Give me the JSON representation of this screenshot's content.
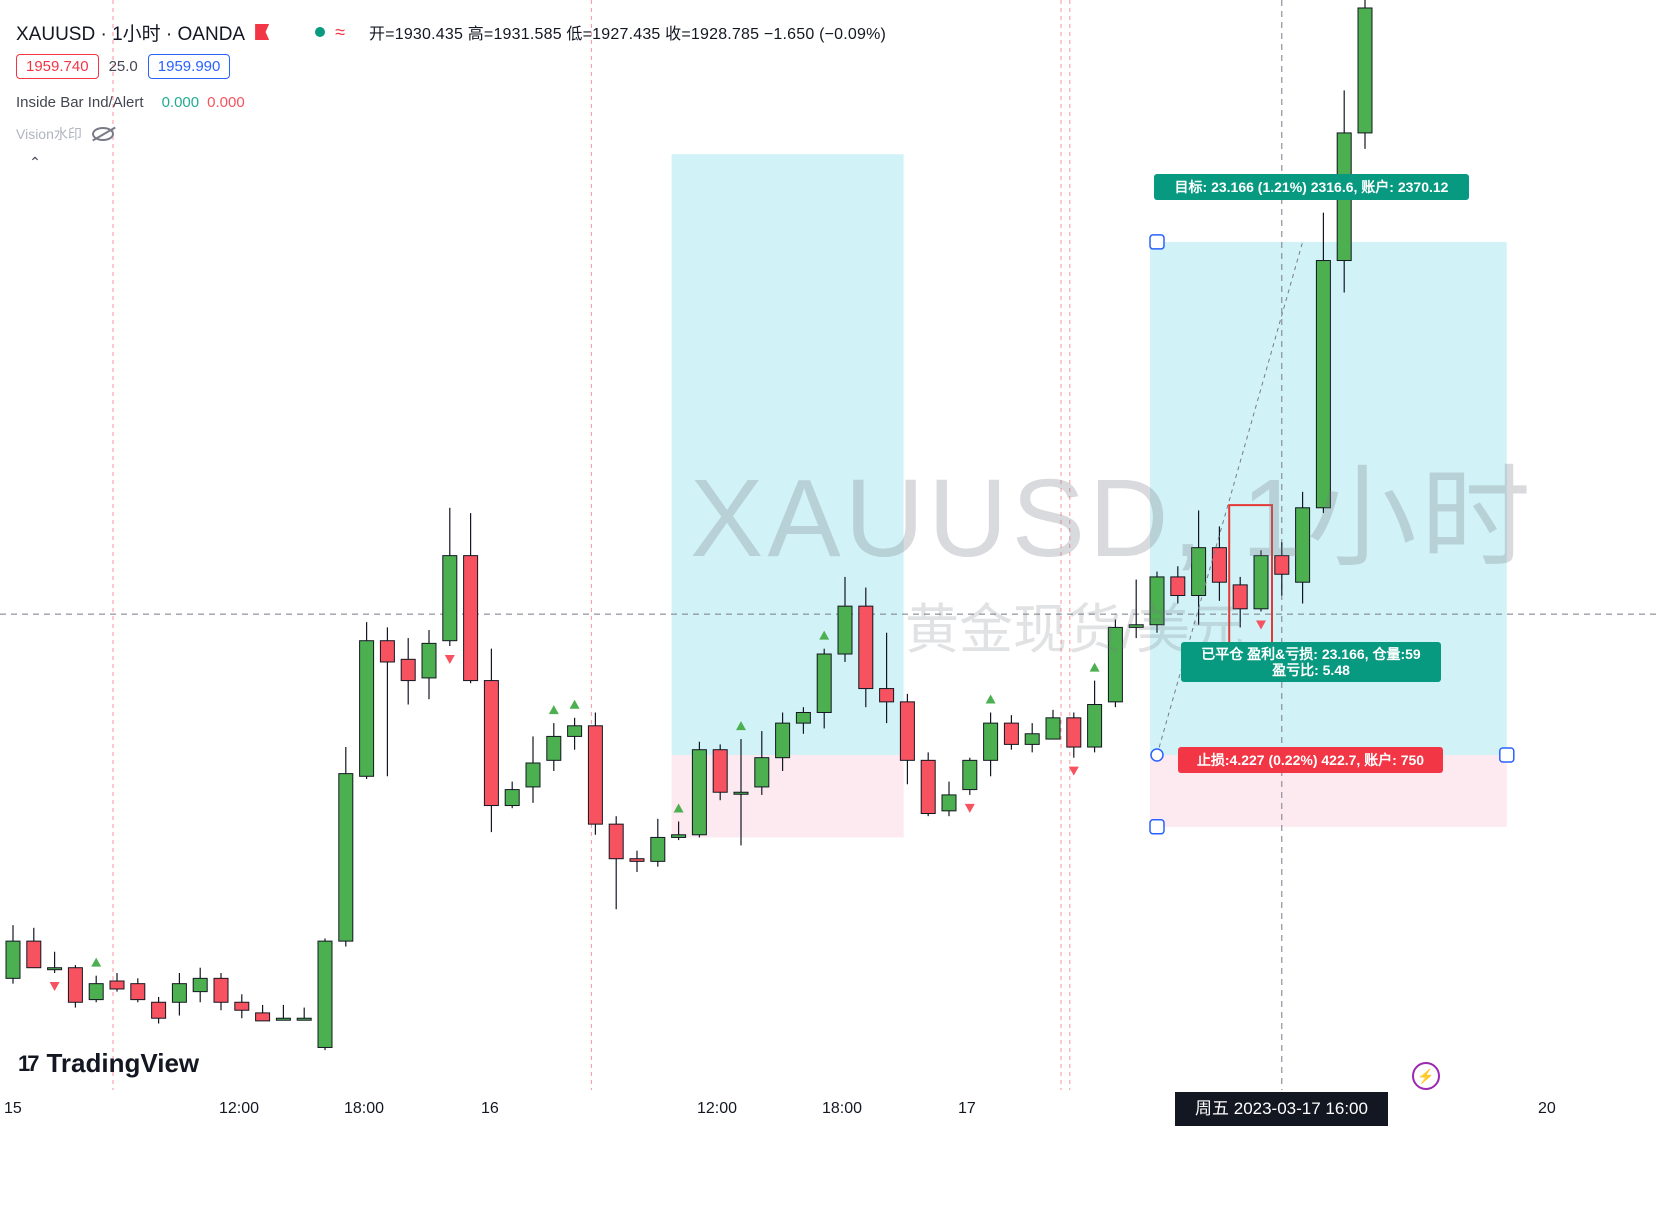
{
  "header": {
    "symbol": "XAUUSD · 1小时 · OANDA",
    "ohlc": "开=1930.435  高=1931.585  低=1927.435  收=1928.785  −1.650 (−0.09%)"
  },
  "price_row": {
    "sell": "1959.740",
    "spread": "25.0",
    "buy": "1959.990"
  },
  "indicator": {
    "name": "Inside Bar Ind/Alert",
    "value1": "0.000",
    "value2": "0.000"
  },
  "vision": {
    "label": "Vision水印"
  },
  "collapse": {
    "glyph": "⌃"
  },
  "watermark": {
    "line1": "XAUUSD, 1小时",
    "line2": "黄金现货/美元"
  },
  "x_axis": {
    "labels": [
      "15",
      "12:00",
      "18:00",
      "16",
      "12:00",
      "18:00",
      "17",
      "20"
    ],
    "crosshair": "周五 2023-03-17   16:00"
  },
  "position_tool": {
    "target": "目标: 23.166 (1.21%) 2316.6, 账户: 2370.12",
    "closed_line1": "已平仓 盈利&亏损: 23.166, 仓量:59",
    "closed_line2": "盈亏比: 5.48",
    "stop": "止损:4.227 (0.22%) 422.7, 账户: 750"
  },
  "logo": {
    "mark": "17",
    "text": "TradingView"
  },
  "colors": {
    "up": "#22ab94",
    "up_body": "#4caf50",
    "down": "#f23645",
    "down_body": "#f7525f",
    "profit_zone": "#b2ebf2",
    "loss_zone": "#fce4ec",
    "accent": "#089981"
  },
  "chart_data": {
    "type": "candlestick",
    "candles": [
      {
        "o": 72,
        "c": 86,
        "h": 92,
        "l": 70
      },
      {
        "o": 86,
        "c": 76,
        "h": 91,
        "l": 76
      },
      {
        "o": 76,
        "c": 76,
        "h": 82,
        "l": 74
      },
      {
        "o": 76,
        "c": 63,
        "h": 77,
        "l": 61
      },
      {
        "o": 64,
        "c": 70,
        "h": 73,
        "l": 63
      },
      {
        "o": 71,
        "c": 68,
        "h": 74,
        "l": 67
      },
      {
        "o": 70,
        "c": 64,
        "h": 72,
        "l": 63
      },
      {
        "o": 63,
        "c": 57,
        "h": 65,
        "l": 55
      },
      {
        "o": 63,
        "c": 70,
        "h": 74,
        "l": 58
      },
      {
        "o": 67,
        "c": 72,
        "h": 76,
        "l": 63
      },
      {
        "o": 72,
        "c": 63,
        "h": 74,
        "l": 60
      },
      {
        "o": 63,
        "c": 60,
        "h": 66,
        "l": 57
      },
      {
        "o": 59,
        "c": 56,
        "h": 62,
        "l": 56
      },
      {
        "o": 57,
        "c": 57,
        "h": 62,
        "l": 57
      },
      {
        "o": 57,
        "c": 57,
        "h": 61,
        "l": 57
      },
      {
        "o": 46,
        "c": 86,
        "h": 87,
        "l": 45
      },
      {
        "o": 86,
        "c": 149,
        "h": 159,
        "l": 84
      },
      {
        "o": 148,
        "c": 199,
        "h": 206,
        "l": 147
      },
      {
        "o": 199,
        "c": 191,
        "h": 204,
        "l": 148
      },
      {
        "o": 192,
        "c": 184,
        "h": 200,
        "l": 175
      },
      {
        "o": 185,
        "c": 198,
        "h": 203,
        "l": 177
      },
      {
        "o": 199,
        "c": 231,
        "h": 249,
        "l": 197
      },
      {
        "o": 231,
        "c": 184,
        "h": 247,
        "l": 183
      },
      {
        "o": 184,
        "c": 137,
        "h": 196,
        "l": 127
      },
      {
        "o": 137,
        "c": 143,
        "h": 146,
        "l": 136
      },
      {
        "o": 144,
        "c": 153,
        "h": 163,
        "l": 138
      },
      {
        "o": 154,
        "c": 163,
        "h": 168,
        "l": 150
      },
      {
        "o": 163,
        "c": 167,
        "h": 170,
        "l": 158
      },
      {
        "o": 167,
        "c": 130,
        "h": 172,
        "l": 126
      },
      {
        "o": 130,
        "c": 117,
        "h": 133,
        "l": 98
      },
      {
        "o": 117,
        "c": 116,
        "h": 120,
        "l": 112
      },
      {
        "o": 116,
        "c": 125,
        "h": 132,
        "l": 114
      },
      {
        "o": 125,
        "c": 126,
        "h": 131,
        "l": 124
      },
      {
        "o": 126,
        "c": 158,
        "h": 161,
        "l": 125
      },
      {
        "o": 158,
        "c": 142,
        "h": 160,
        "l": 139
      },
      {
        "o": 142,
        "c": 142,
        "h": 162,
        "l": 122
      },
      {
        "o": 144,
        "c": 155,
        "h": 165,
        "l": 141
      },
      {
        "o": 155,
        "c": 168,
        "h": 172,
        "l": 150
      },
      {
        "o": 168,
        "c": 172,
        "h": 174,
        "l": 164
      },
      {
        "o": 172,
        "c": 194,
        "h": 196,
        "l": 166
      },
      {
        "o": 194,
        "c": 212,
        "h": 223,
        "l": 191
      },
      {
        "o": 212,
        "c": 181,
        "h": 219,
        "l": 174
      },
      {
        "o": 181,
        "c": 176,
        "h": 202,
        "l": 168
      },
      {
        "o": 176,
        "c": 154,
        "h": 179,
        "l": 145
      },
      {
        "o": 154,
        "c": 134,
        "h": 157,
        "l": 133
      },
      {
        "o": 135,
        "c": 141,
        "h": 146,
        "l": 133
      },
      {
        "o": 143,
        "c": 154,
        "h": 155,
        "l": 141
      },
      {
        "o": 154,
        "c": 168,
        "h": 172,
        "l": 148
      },
      {
        "o": 168,
        "c": 160,
        "h": 171,
        "l": 158
      },
      {
        "o": 160,
        "c": 164,
        "h": 168,
        "l": 157
      },
      {
        "o": 162,
        "c": 170,
        "h": 173,
        "l": 162
      },
      {
        "o": 170,
        "c": 159,
        "h": 172,
        "l": 155
      },
      {
        "o": 159,
        "c": 175,
        "h": 184,
        "l": 157
      },
      {
        "o": 176,
        "c": 204,
        "h": 207,
        "l": 174
      },
      {
        "o": 204,
        "c": 205,
        "h": 222,
        "l": 200
      },
      {
        "o": 205,
        "c": 223,
        "h": 225,
        "l": 202
      },
      {
        "o": 223,
        "c": 216,
        "h": 227,
        "l": 213
      },
      {
        "o": 216,
        "c": 234,
        "h": 248,
        "l": 205
      },
      {
        "o": 234,
        "c": 221,
        "h": 242,
        "l": 214
      },
      {
        "o": 220,
        "c": 211,
        "h": 223,
        "l": 204
      },
      {
        "o": 211,
        "c": 231,
        "h": 233,
        "l": 210
      },
      {
        "o": 231,
        "c": 224,
        "h": 236,
        "l": 216
      },
      {
        "o": 221,
        "c": 249,
        "h": 255,
        "l": 213
      },
      {
        "o": 249,
        "c": 342,
        "h": 360,
        "l": 247
      },
      {
        "o": 342,
        "c": 390,
        "h": 406,
        "l": 330
      },
      {
        "o": 390,
        "c": 437,
        "h": 447,
        "l": 384
      }
    ],
    "markers": [
      {
        "i": 2,
        "dir": "down"
      },
      {
        "i": 4,
        "dir": "up"
      },
      {
        "i": 21,
        "dir": "down"
      },
      {
        "i": 26,
        "dir": "up"
      },
      {
        "i": 27,
        "dir": "up"
      },
      {
        "i": 32,
        "dir": "up"
      },
      {
        "i": 35,
        "dir": "up"
      },
      {
        "i": 39,
        "dir": "up"
      },
      {
        "i": 46,
        "dir": "down"
      },
      {
        "i": 47,
        "dir": "up"
      },
      {
        "i": 51,
        "dir": "down"
      },
      {
        "i": 52,
        "dir": "up"
      },
      {
        "i": 60,
        "dir": "down"
      }
    ],
    "zones": [
      {
        "kind": "profit",
        "from": 32,
        "to": 42,
        "top": 382,
        "bottom": 156
      },
      {
        "kind": "loss",
        "from": 32,
        "to": 42,
        "top": 156,
        "bottom": 125
      },
      {
        "kind": "profit",
        "from": 55,
        "to": 71,
        "top": 349,
        "bottom": 156
      },
      {
        "kind": "loss",
        "from": 55,
        "to": 71,
        "top": 156,
        "bottom": 129
      }
    ],
    "highlight": {
      "from": 59,
      "to": 60,
      "top": 250,
      "bottom": 196
    },
    "crosshair": {
      "i": 61,
      "price": 209
    },
    "ylim": [
      30,
      440
    ],
    "vlines_at": [
      5,
      28,
      51
    ]
  }
}
